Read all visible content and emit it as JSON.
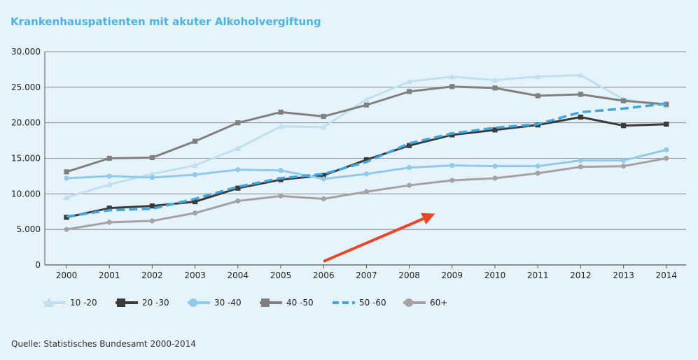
{
  "title": "Krankenhauspatienten mit akuter Alkoholvergiftung",
  "source": "Quelle: Statistisches Bundesamt 2000-2014",
  "chart_data": {
    "type": "line",
    "title": "Krankenhauspatienten mit akuter Alkoholvergiftung",
    "xlabel": "",
    "ylabel": "",
    "x": [
      "2000",
      "2001",
      "2002",
      "2003",
      "2004",
      "2005",
      "2006",
      "2007",
      "2008",
      "2009",
      "2010",
      "2011",
      "2012",
      "2013",
      "2014"
    ],
    "ylim": [
      0,
      30000
    ],
    "yticks": [
      0,
      5000,
      10000,
      15000,
      20000,
      25000,
      30000
    ],
    "ytick_labels": [
      "0",
      "5.000",
      "10.000",
      "15.000",
      "20.000",
      "25.000",
      "30.000"
    ],
    "grid": "horizontal",
    "legend_position": "bottom",
    "series": [
      {
        "name": "10 -20",
        "color": "#bfe0f1",
        "marker": "triangle",
        "dash": "solid",
        "values": [
          9500,
          11300,
          12800,
          14000,
          16400,
          19500,
          19400,
          23300,
          25800,
          26500,
          26000,
          26500,
          26700,
          23300,
          22400
        ]
      },
      {
        "name": "20 -30",
        "color": "#3a3a3a",
        "marker": "square",
        "dash": "solid",
        "values": [
          6700,
          8000,
          8300,
          8900,
          10800,
          12000,
          12600,
          14800,
          16800,
          18300,
          19000,
          19700,
          20800,
          19600,
          19800
        ]
      },
      {
        "name": "30 -40",
        "color": "#8fcaea",
        "marker": "circle",
        "dash": "solid",
        "values": [
          12200,
          12500,
          12300,
          12700,
          13400,
          13300,
          12100,
          12800,
          13700,
          14000,
          13900,
          13900,
          14700,
          14700,
          16200
        ]
      },
      {
        "name": "40 -50",
        "color": "#808080",
        "marker": "square",
        "dash": "solid",
        "values": [
          13100,
          15000,
          15100,
          17400,
          20000,
          21500,
          20900,
          22500,
          24400,
          25100,
          24900,
          23800,
          24000,
          23100,
          22600
        ]
      },
      {
        "name": "50 -60",
        "color": "#3fa6de",
        "marker": "none",
        "dash": "dashed",
        "values": [
          6800,
          7700,
          7900,
          9300,
          11000,
          12200,
          12800,
          14500,
          17100,
          18500,
          19300,
          19800,
          21500,
          22000,
          22700
        ]
      },
      {
        "name": "60+",
        "color": "#a3a3a3",
        "marker": "circle",
        "dash": "solid",
        "values": [
          5000,
          6000,
          6200,
          7300,
          9000,
          9700,
          9300,
          10300,
          11200,
          11900,
          12200,
          12900,
          13800,
          13900,
          15000
        ]
      }
    ],
    "annotations": [
      {
        "type": "arrow",
        "color": "#e8472a",
        "from": {
          "x": "2006",
          "y": 500
        },
        "to": {
          "x": "2008.6",
          "y": 7200
        }
      }
    ]
  }
}
